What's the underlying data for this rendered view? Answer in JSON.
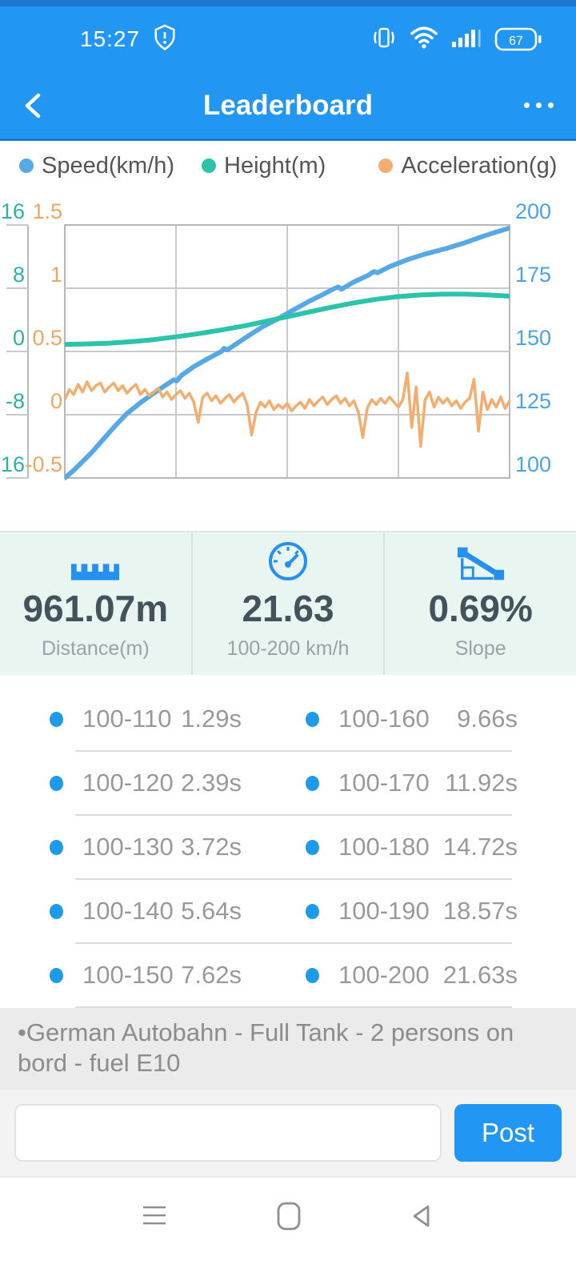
{
  "status_bar": {
    "time": "15:27",
    "battery_percent": "67"
  },
  "header": {
    "title": "Leaderboard"
  },
  "legend": [
    {
      "label": "Speed(km/h)",
      "color": "#57a9e6"
    },
    {
      "label": "Height(m)",
      "color": "#2cc3ab"
    },
    {
      "label": "Acceleration(g)",
      "color": "#f3ad6e"
    }
  ],
  "chart_data": {
    "type": "line",
    "grid": true,
    "colors": {
      "gridline": "#c9c9c9",
      "border": "#b7b7b7"
    },
    "axes": {
      "left_outer": {
        "name": "Height(m)",
        "color": "#2bb3a3",
        "ticks": [
          "16",
          "8",
          "0",
          "-8",
          "-16"
        ],
        "range": [
          -16,
          16
        ]
      },
      "left_inner": {
        "name": "Acceleration(g)",
        "color": "#f0a660",
        "ticks": [
          "1.5",
          "1",
          "0.5",
          "0",
          "-0.5"
        ],
        "range": [
          -0.5,
          1.5
        ]
      },
      "right": {
        "name": "Speed(km/h)",
        "color": "#4aa3e8",
        "ticks": [
          "200",
          "175",
          "150",
          "125",
          "100"
        ],
        "range": [
          100,
          200
        ]
      }
    },
    "series": [
      {
        "name": "Speed(km/h)",
        "axis": "right",
        "color": "#57a9e6",
        "width": 6,
        "points": [
          [
            0,
            100
          ],
          [
            0.02,
            103
          ],
          [
            0.04,
            106.5
          ],
          [
            0.06,
            110
          ],
          [
            0.085,
            115
          ],
          [
            0.11,
            120
          ],
          [
            0.14,
            125.5
          ],
          [
            0.172,
            130
          ],
          [
            0.2,
            133.5
          ],
          [
            0.225,
            136.5
          ],
          [
            0.245,
            138.8
          ],
          [
            0.252,
            138.4
          ],
          [
            0.262,
            140.5
          ],
          [
            0.29,
            144
          ],
          [
            0.32,
            147
          ],
          [
            0.352,
            150
          ],
          [
            0.358,
            151.2
          ],
          [
            0.365,
            150.6
          ],
          [
            0.39,
            153.5
          ],
          [
            0.42,
            157
          ],
          [
            0.447,
            160
          ],
          [
            0.48,
            163
          ],
          [
            0.51,
            166
          ],
          [
            0.551,
            170
          ],
          [
            0.58,
            172.5
          ],
          [
            0.605,
            174.8
          ],
          [
            0.615,
            175.5
          ],
          [
            0.622,
            174.6
          ],
          [
            0.65,
            177.5
          ],
          [
            0.681,
            180
          ],
          [
            0.695,
            181.6
          ],
          [
            0.703,
            181.1
          ],
          [
            0.73,
            183.5
          ],
          [
            0.77,
            186.3
          ],
          [
            0.81,
            188.5
          ],
          [
            0.859,
            190.8
          ],
          [
            0.9,
            193
          ],
          [
            0.94,
            195.5
          ],
          [
            0.97,
            197.2
          ],
          [
            1,
            198.8
          ]
        ]
      },
      {
        "name": "Height(m)",
        "axis": "left_outer",
        "color": "#2cc3ab",
        "width": 6,
        "points": [
          [
            0,
            0.9
          ],
          [
            0.05,
            0.95
          ],
          [
            0.1,
            1.05
          ],
          [
            0.15,
            1.25
          ],
          [
            0.2,
            1.5
          ],
          [
            0.25,
            1.85
          ],
          [
            0.3,
            2.25
          ],
          [
            0.35,
            2.7
          ],
          [
            0.4,
            3.2
          ],
          [
            0.45,
            3.8
          ],
          [
            0.5,
            4.4
          ],
          [
            0.55,
            5.0
          ],
          [
            0.6,
            5.6
          ],
          [
            0.65,
            6.15
          ],
          [
            0.7,
            6.6
          ],
          [
            0.75,
            6.95
          ],
          [
            0.8,
            7.15
          ],
          [
            0.85,
            7.25
          ],
          [
            0.9,
            7.25
          ],
          [
            0.95,
            7.15
          ],
          [
            1,
            7.0
          ]
        ]
      },
      {
        "name": "Acceleration(g)",
        "axis": "left_inner",
        "color": "#f3ad6e",
        "width": 3.5,
        "points": [
          [
            0,
            0.12
          ],
          [
            0.01,
            0.2
          ],
          [
            0.02,
            0.16
          ],
          [
            0.03,
            0.24
          ],
          [
            0.04,
            0.18
          ],
          [
            0.05,
            0.26
          ],
          [
            0.06,
            0.19
          ],
          [
            0.07,
            0.23
          ],
          [
            0.08,
            0.25
          ],
          [
            0.09,
            0.18
          ],
          [
            0.1,
            0.22
          ],
          [
            0.11,
            0.25
          ],
          [
            0.12,
            0.19
          ],
          [
            0.13,
            0.23
          ],
          [
            0.14,
            0.17
          ],
          [
            0.15,
            0.21
          ],
          [
            0.16,
            0.24
          ],
          [
            0.17,
            0.16
          ],
          [
            0.18,
            0.2
          ],
          [
            0.19,
            0.15
          ],
          [
            0.2,
            0.18
          ],
          [
            0.21,
            0.21
          ],
          [
            0.22,
            0.14
          ],
          [
            0.23,
            0.18
          ],
          [
            0.24,
            0.12
          ],
          [
            0.25,
            0.16
          ],
          [
            0.26,
            0.19
          ],
          [
            0.27,
            0.13
          ],
          [
            0.28,
            0.17
          ],
          [
            0.29,
            0.1
          ],
          [
            0.3,
            -0.06
          ],
          [
            0.31,
            0.14
          ],
          [
            0.32,
            0.17
          ],
          [
            0.33,
            0.11
          ],
          [
            0.34,
            0.15
          ],
          [
            0.35,
            0.09
          ],
          [
            0.36,
            0.13
          ],
          [
            0.37,
            0.16
          ],
          [
            0.38,
            0.1
          ],
          [
            0.39,
            0.14
          ],
          [
            0.4,
            0.17
          ],
          [
            0.41,
            0.08
          ],
          [
            0.42,
            -0.16
          ],
          [
            0.43,
            0.02
          ],
          [
            0.44,
            0.1
          ],
          [
            0.45,
            0.06
          ],
          [
            0.46,
            0.11
          ],
          [
            0.47,
            0.04
          ],
          [
            0.48,
            0.08
          ],
          [
            0.49,
            0.05
          ],
          [
            0.5,
            0.09
          ],
          [
            0.51,
            0.03
          ],
          [
            0.52,
            0.07
          ],
          [
            0.53,
            0.1
          ],
          [
            0.54,
            0.05
          ],
          [
            0.55,
            0.12
          ],
          [
            0.56,
            0.07
          ],
          [
            0.57,
            0.11
          ],
          [
            0.58,
            0.14
          ],
          [
            0.59,
            0.08
          ],
          [
            0.6,
            0.12
          ],
          [
            0.61,
            0.15
          ],
          [
            0.62,
            0.09
          ],
          [
            0.63,
            0.13
          ],
          [
            0.64,
            0.07
          ],
          [
            0.65,
            0.11
          ],
          [
            0.66,
            0.02
          ],
          [
            0.67,
            -0.18
          ],
          [
            0.68,
            0.05
          ],
          [
            0.69,
            0.12
          ],
          [
            0.7,
            0.08
          ],
          [
            0.71,
            0.13
          ],
          [
            0.72,
            0.09
          ],
          [
            0.73,
            0.14
          ],
          [
            0.74,
            0.1
          ],
          [
            0.75,
            0.06
          ],
          [
            0.76,
            0.12
          ],
          [
            0.77,
            0.33
          ],
          [
            0.78,
            -0.1
          ],
          [
            0.79,
            0.22
          ],
          [
            0.8,
            -0.25
          ],
          [
            0.81,
            0.12
          ],
          [
            0.82,
            0.18
          ],
          [
            0.83,
            0.06
          ],
          [
            0.84,
            0.14
          ],
          [
            0.85,
            0.09
          ],
          [
            0.86,
            0.13
          ],
          [
            0.87,
            0.07
          ],
          [
            0.88,
            0.11
          ],
          [
            0.89,
            0.05
          ],
          [
            0.9,
            0.1
          ],
          [
            0.91,
            0.13
          ],
          [
            0.92,
            0.28
          ],
          [
            0.93,
            -0.13
          ],
          [
            0.94,
            0.18
          ],
          [
            0.95,
            0.04
          ],
          [
            0.96,
            0.12
          ],
          [
            0.97,
            0.06
          ],
          [
            0.98,
            0.14
          ],
          [
            0.99,
            0.05
          ],
          [
            1,
            0.11
          ]
        ]
      }
    ]
  },
  "stats": {
    "items": [
      {
        "icon": "ruler-icon",
        "value": "961.07m",
        "label": "Distance(m)"
      },
      {
        "icon": "speedometer-icon",
        "value": "21.63",
        "label": "100-200 km/h"
      },
      {
        "icon": "slope-icon",
        "value": "0.69%",
        "label": "Slope"
      }
    ],
    "icon_color": "#2590ee"
  },
  "table": {
    "rows": [
      {
        "left": {
          "range": "100-110",
          "time": "1.29s"
        },
        "right": {
          "range": "100-160",
          "time": "9.66s"
        }
      },
      {
        "left": {
          "range": "100-120",
          "time": "2.39s"
        },
        "right": {
          "range": "100-170",
          "time": "11.92s"
        }
      },
      {
        "left": {
          "range": "100-130",
          "time": "3.72s"
        },
        "right": {
          "range": "100-180",
          "time": "14.72s"
        }
      },
      {
        "left": {
          "range": "100-140",
          "time": "5.64s"
        },
        "right": {
          "range": "100-190",
          "time": "18.57s"
        }
      },
      {
        "left": {
          "range": "100-150",
          "time": "7.62s"
        },
        "right": {
          "range": "100-200",
          "time": "21.63s"
        }
      }
    ],
    "bullet_color": "#1d9be6"
  },
  "comment": {
    "text": "•German Autobahn - Full Tank - 2 persons on bord - fuel E10"
  },
  "compose": {
    "input_value": "",
    "placeholder": "",
    "post_label": "Post"
  },
  "colors": {
    "accent_blue": "#2196f3",
    "stats_bg": "#e9f5f1",
    "comment_bg": "#ebebeb"
  }
}
